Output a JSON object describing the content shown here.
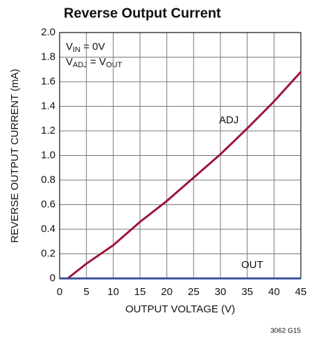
{
  "chart_data": {
    "type": "line",
    "title": "Reverse Output Current",
    "x_label": "OUTPUT VOLTAGE (V)",
    "y_label": "REVERSE OUTPUT CURRENT (mA)",
    "annotations": [
      [
        "V",
        "IN",
        " = 0V"
      ],
      [
        "V",
        "ADJ",
        " = V",
        "OUT"
      ]
    ],
    "footnote": "3062 G15",
    "xlim": [
      0,
      45
    ],
    "ylim": [
      0,
      2
    ],
    "xticks": [
      0,
      5,
      10,
      15,
      20,
      25,
      30,
      35,
      40,
      45
    ],
    "yticks": [
      0,
      0.2,
      0.4,
      0.6,
      0.8,
      {
        "value": 1,
        "label": "1.0"
      },
      1.2,
      1.4,
      1.6,
      1.8,
      {
        "value": 2,
        "label": "2.0"
      }
    ],
    "grid": true,
    "series": [
      {
        "name": "ADJ",
        "color": "#9e1438",
        "x": [
          0,
          1.5,
          5,
          10,
          15,
          20,
          25,
          30,
          35,
          40,
          45
        ],
        "values": [
          0,
          0,
          0.12,
          0.27,
          0.46,
          0.63,
          0.82,
          1.01,
          1.22,
          1.44,
          1.68
        ]
      },
      {
        "name": "OUT",
        "color": "#3b4f9e",
        "x": [
          0,
          45
        ],
        "values": [
          0,
          0
        ]
      }
    ]
  }
}
